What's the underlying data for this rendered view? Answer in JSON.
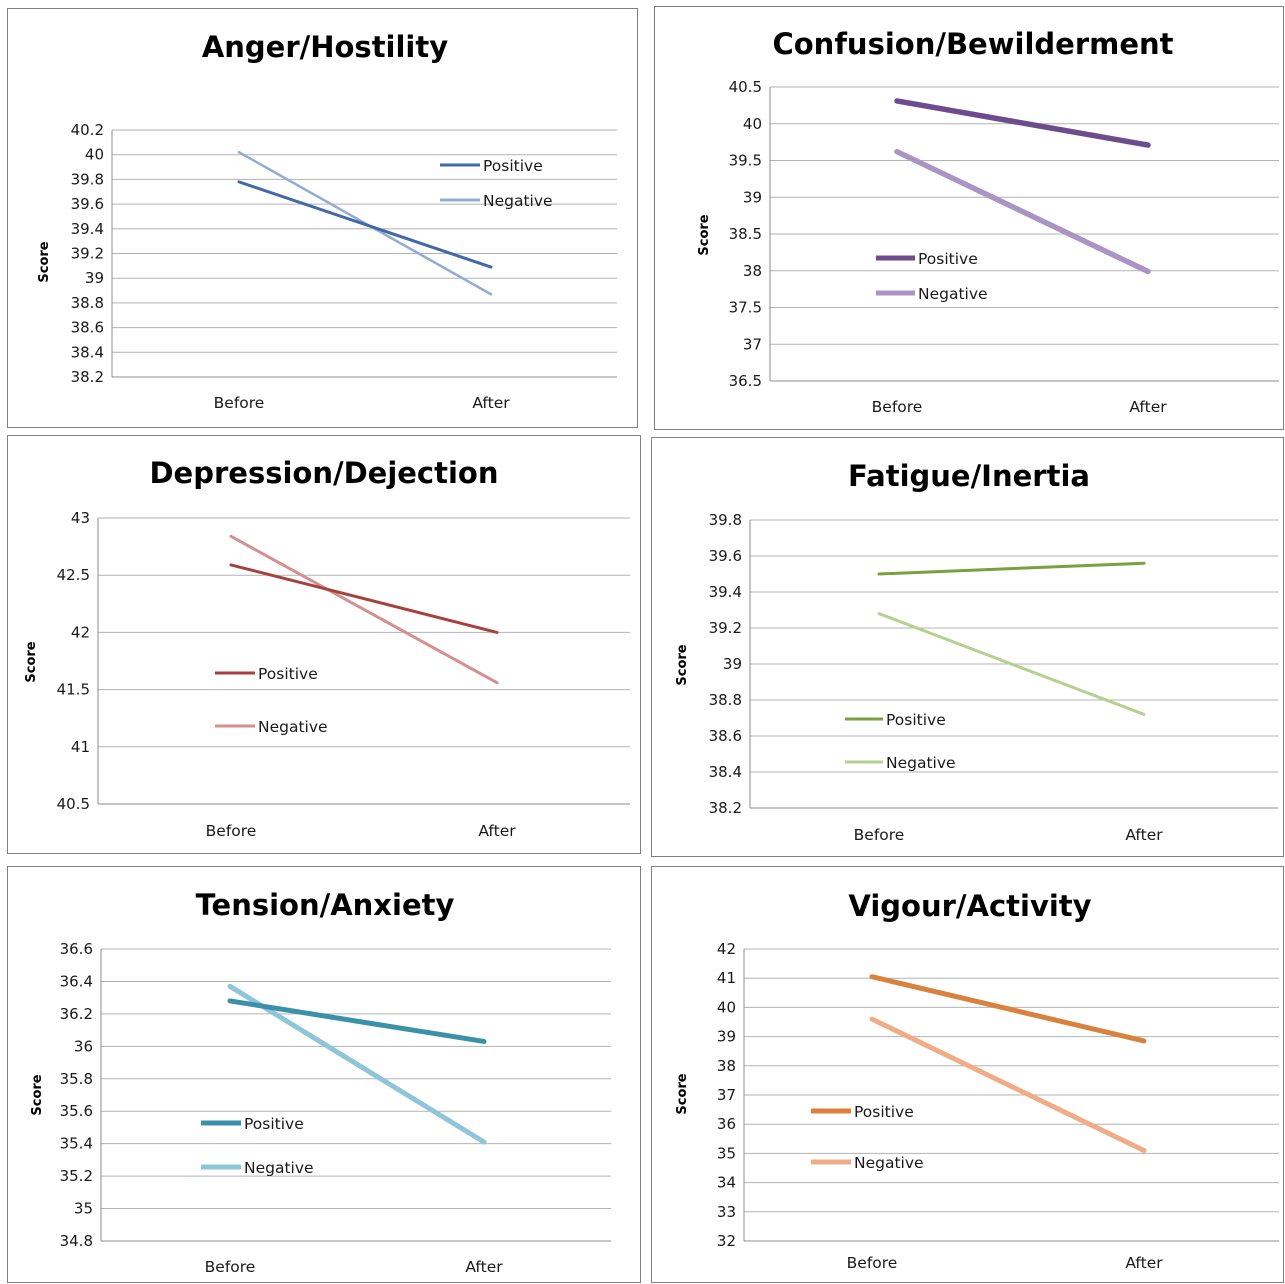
{
  "chart_data": [
    {
      "type": "line",
      "title": "Anger/Hostility",
      "ylabel": "Score",
      "xlabel": "",
      "categories": [
        "Before",
        "After"
      ],
      "ylim": [
        38.2,
        40.2
      ],
      "yticks": [
        "38.2",
        "38.4",
        "38.6",
        "38.8",
        "39",
        "39.2",
        "39.4",
        "39.6",
        "39.8",
        "40",
        "40.2"
      ],
      "grid": true,
      "legend_position": "right",
      "series": [
        {
          "name": "Positive",
          "values": [
            39.78,
            39.09
          ],
          "color": "#4169a8"
        },
        {
          "name": "Negative",
          "values": [
            40.02,
            38.87
          ],
          "color": "#93acd6"
        }
      ]
    },
    {
      "type": "line",
      "title": "Confusion/Bewilderment",
      "ylabel": "Score",
      "xlabel": "",
      "categories": [
        "Before",
        "After"
      ],
      "ylim": [
        36.5,
        40.5
      ],
      "yticks": [
        "36.5",
        "37",
        "37.5",
        "38",
        "38.5",
        "39",
        "39.5",
        "40",
        "40.5"
      ],
      "grid": true,
      "legend_position": "left",
      "series": [
        {
          "name": "Positive",
          "values": [
            40.31,
            39.71
          ],
          "color": "#6d4c8e"
        },
        {
          "name": "Negative",
          "values": [
            39.62,
            37.99
          ],
          "color": "#a994c4"
        }
      ]
    },
    {
      "type": "line",
      "title": "Depression/Dejection",
      "ylabel": "Score",
      "xlabel": "",
      "categories": [
        "Before",
        "After"
      ],
      "ylim": [
        40.5,
        43
      ],
      "yticks": [
        "40.5",
        "41",
        "41.5",
        "42",
        "42.5",
        "43"
      ],
      "grid": true,
      "legend_position": "left",
      "series": [
        {
          "name": "Positive",
          "values": [
            42.59,
            42.0
          ],
          "color": "#a8403f"
        },
        {
          "name": "Negative",
          "values": [
            42.84,
            41.56
          ],
          "color": "#d58f8f"
        }
      ]
    },
    {
      "type": "line",
      "title": "Fatigue/Inertia",
      "ylabel": "Score",
      "xlabel": "",
      "categories": [
        "Before",
        "After"
      ],
      "ylim": [
        38.2,
        39.8
      ],
      "yticks": [
        "38.2",
        "38.4",
        "38.6",
        "38.8",
        "39",
        "39.2",
        "39.4",
        "39.6",
        "39.8"
      ],
      "grid": true,
      "legend_position": "left",
      "series": [
        {
          "name": "Positive",
          "values": [
            39.5,
            39.56
          ],
          "color": "#77a23e"
        },
        {
          "name": "Negative",
          "values": [
            39.28,
            38.72
          ],
          "color": "#b5d08f"
        }
      ]
    },
    {
      "type": "line",
      "title": "Tension/Anxiety",
      "ylabel": "Score",
      "xlabel": "",
      "categories": [
        "Before",
        "After"
      ],
      "ylim": [
        34.8,
        36.6
      ],
      "yticks": [
        "34.8",
        "35",
        "35.2",
        "35.4",
        "35.6",
        "35.8",
        "36",
        "36.2",
        "36.4",
        "36.6"
      ],
      "grid": true,
      "legend_position": "left",
      "series": [
        {
          "name": "Positive",
          "values": [
            36.28,
            36.03
          ],
          "color": "#3b91a8"
        },
        {
          "name": "Negative",
          "values": [
            36.37,
            35.41
          ],
          "color": "#8ec5d8"
        }
      ]
    },
    {
      "type": "line",
      "title": "Vigour/Activity",
      "ylabel": "Score",
      "xlabel": "",
      "categories": [
        "Before",
        "After"
      ],
      "ylim": [
        32,
        42
      ],
      "yticks": [
        "32",
        "33",
        "34",
        "35",
        "36",
        "37",
        "38",
        "39",
        "40",
        "41",
        "42"
      ],
      "grid": true,
      "legend_position": "left",
      "series": [
        {
          "name": "Positive",
          "values": [
            41.05,
            38.85
          ],
          "color": "#d9823d"
        },
        {
          "name": "Negative",
          "values": [
            39.6,
            35.1
          ],
          "color": "#f0ac87"
        }
      ]
    }
  ]
}
